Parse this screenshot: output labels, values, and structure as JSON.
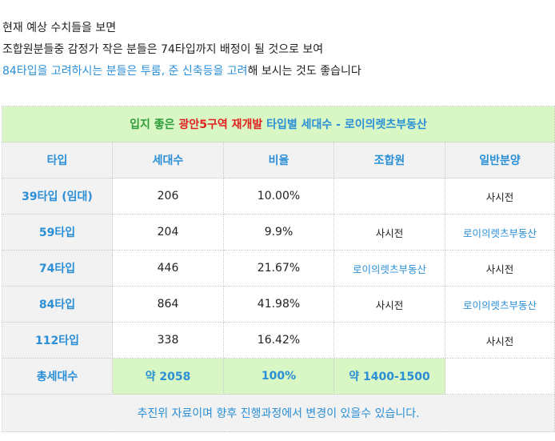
{
  "intro": {
    "line1": "현재 예상 수치들을 보면",
    "line2": "조합원분들중 감정가 작은 분들은 74타입까지 배정이 될 것으로 보여",
    "line3_highlight": "84타입을 고려하시는 분들은 투룸, 준 신축등을 고려",
    "line3_rest": "해 보시는 것도 좋습니다"
  },
  "table": {
    "title": {
      "part1": "입지 좋은 ",
      "part2": "광안5구역 재개발",
      "part3": " 타입별 세대수 - 로이의렛츠부동산"
    },
    "headers": [
      "타입",
      "세대수",
      "비율",
      "조합원",
      "일반분양"
    ],
    "rows": [
      {
        "type": "39타입 (임대)",
        "count": "206",
        "ratio": "10.00%",
        "member": "",
        "general": "사시전"
      },
      {
        "type": "59타입",
        "count": "204",
        "ratio": "9.9%",
        "member": "사시전",
        "general": "로이의렛츠부동산"
      },
      {
        "type": "74타입",
        "count": "446",
        "ratio": "21.67%",
        "member": "로이의렛츠부동산",
        "general": "사시전"
      },
      {
        "type": "84타입",
        "count": "864",
        "ratio": "41.98%",
        "member": "사시전",
        "general": "로이의렛츠부동산"
      },
      {
        "type": "112타입",
        "count": "338",
        "ratio": "16.42%",
        "member": "",
        "general": "사시전"
      }
    ],
    "total": {
      "label": "총세대수",
      "count": "약 2058",
      "ratio": "100%",
      "member": "약 1400-1500",
      "general": ""
    },
    "note": "추진위 자료이며 향후 진행과정에서 변경이 있을수 있습니다."
  }
}
